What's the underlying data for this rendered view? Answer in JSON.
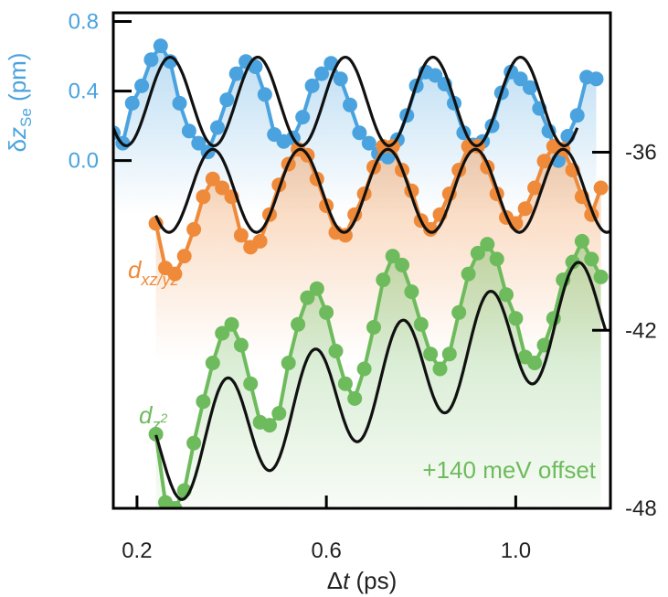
{
  "chart_data": {
    "type": "scatter",
    "title": "",
    "xlabel_delta": "Δ",
    "xlabel_t": "t",
    "xlabel_unit": " (ps)",
    "xlim": [
      0.15,
      1.2
    ],
    "x_ticks": [
      "0.2",
      "0.6",
      "1.0"
    ],
    "x_tick_values": [
      0.2,
      0.6,
      1.0
    ],
    "left_axis": {
      "label_delta": "δ",
      "label_z": "z",
      "label_sub": "Se",
      "label_unit": " (pm)",
      "ylim": [
        -2.0,
        0.85
      ],
      "ticks": [
        "0.8",
        "0.4",
        "0.0"
      ],
      "tick_values": [
        0.8,
        0.4,
        0.0
      ],
      "color": "#4aa3df"
    },
    "right_axis": {
      "ylim": [
        -48,
        -31.3
      ],
      "ticks": [
        "-36",
        "-42",
        "-48"
      ],
      "tick_values": [
        -36,
        -42,
        -48
      ]
    },
    "annotation_offset": "+140 meV offset",
    "series": [
      {
        "name_main": "δz",
        "name_sub": "Se",
        "axis": "left",
        "color": "#4aa3df",
        "x": [
          0.15,
          0.17,
          0.19,
          0.21,
          0.23,
          0.25,
          0.27,
          0.29,
          0.31,
          0.33,
          0.35,
          0.37,
          0.39,
          0.41,
          0.43,
          0.45,
          0.47,
          0.49,
          0.51,
          0.53,
          0.55,
          0.57,
          0.59,
          0.61,
          0.63,
          0.65,
          0.67,
          0.69,
          0.71,
          0.73,
          0.75,
          0.77,
          0.79,
          0.81,
          0.83,
          0.85,
          0.87,
          0.89,
          0.91,
          0.93,
          0.95,
          0.97,
          0.99,
          1.01,
          1.03,
          1.05,
          1.07,
          1.09,
          1.11,
          1.13,
          1.15,
          1.17
        ],
        "y": [
          0.16,
          0.1,
          0.33,
          0.43,
          0.58,
          0.66,
          0.57,
          0.33,
          0.17,
          0.1,
          0.05,
          0.19,
          0.35,
          0.5,
          0.57,
          0.54,
          0.38,
          0.15,
          0.11,
          0.13,
          0.25,
          0.43,
          0.5,
          0.56,
          0.47,
          0.32,
          0.16,
          0.1,
          0.04,
          0.02,
          0.12,
          0.26,
          0.43,
          0.51,
          0.49,
          0.44,
          0.33,
          0.16,
          0.09,
          0.11,
          0.2,
          0.39,
          0.51,
          0.47,
          0.42,
          0.3,
          0.17,
          0.0,
          0.14,
          0.26,
          0.48,
          0.47
        ],
        "fit": {
          "amplitude": 0.255,
          "period_ps": 0.185,
          "phase_peak_ps": 0.27,
          "offset": 0.34,
          "x_range": [
            0.15,
            1.13
          ]
        }
      },
      {
        "name_main": "d",
        "name_sub": "xz/yz",
        "axis": "right",
        "color": "#ef8a3a",
        "x": [
          0.24,
          0.26,
          0.28,
          0.3,
          0.32,
          0.34,
          0.36,
          0.38,
          0.4,
          0.42,
          0.44,
          0.46,
          0.48,
          0.5,
          0.52,
          0.54,
          0.56,
          0.58,
          0.6,
          0.62,
          0.64,
          0.66,
          0.68,
          0.7,
          0.72,
          0.74,
          0.76,
          0.78,
          0.8,
          0.82,
          0.84,
          0.86,
          0.88,
          0.9,
          0.92,
          0.94,
          0.96,
          0.98,
          1.0,
          1.02,
          1.04,
          1.06,
          1.08,
          1.1,
          1.12,
          1.14,
          1.16,
          1.18
        ],
        "y": [
          -38.4,
          -39.9,
          -40.1,
          -39.5,
          -38.6,
          -37.5,
          -36.9,
          -37.2,
          -37.5,
          -38.8,
          -39.2,
          -39.0,
          -38.1,
          -37.1,
          -36.4,
          -35.9,
          -36.1,
          -36.9,
          -37.8,
          -38.7,
          -38.8,
          -38.1,
          -37.4,
          -36.5,
          -35.8,
          -35.8,
          -36.6,
          -37.3,
          -38.3,
          -38.6,
          -38.1,
          -37.4,
          -36.6,
          -35.8,
          -35.8,
          -36.5,
          -37.4,
          -38.2,
          -38.4,
          -37.9,
          -37.2,
          -36.3,
          -35.8,
          -35.9,
          -36.6,
          -37.5,
          -38.1,
          -37.2
        ],
        "fit": {
          "amplitude": 1.4,
          "period_ps": 0.185,
          "phase_peak_ps": 0.36,
          "offset": -37.3,
          "x_range": [
            0.24,
            1.2
          ]
        }
      },
      {
        "name_main": "d",
        "name_sub": "z",
        "name_sup": "2",
        "axis": "right",
        "color": "#6dbb5c",
        "x": [
          0.24,
          0.26,
          0.28,
          0.3,
          0.32,
          0.34,
          0.36,
          0.38,
          0.4,
          0.42,
          0.44,
          0.46,
          0.48,
          0.5,
          0.52,
          0.54,
          0.56,
          0.58,
          0.6,
          0.62,
          0.64,
          0.66,
          0.68,
          0.7,
          0.72,
          0.74,
          0.76,
          0.78,
          0.8,
          0.82,
          0.84,
          0.86,
          0.88,
          0.9,
          0.92,
          0.94,
          0.96,
          0.98,
          1.0,
          1.02,
          1.04,
          1.06,
          1.08,
          1.1,
          1.12,
          1.14,
          1.16,
          1.18
        ],
        "y": [
          -45.5,
          -47.8,
          -48.0,
          -47.4,
          -45.8,
          -44.4,
          -43.1,
          -42.1,
          -41.8,
          -42.5,
          -43.8,
          -45.1,
          -45.2,
          -44.8,
          -43.1,
          -41.8,
          -40.9,
          -40.6,
          -41.4,
          -42.7,
          -43.8,
          -44.3,
          -43.3,
          -41.9,
          -40.3,
          -39.5,
          -39.8,
          -40.7,
          -41.8,
          -42.8,
          -43.3,
          -42.8,
          -41.4,
          -40.1,
          -39.4,
          -39.1,
          -39.6,
          -40.8,
          -41.6,
          -42.9,
          -43.1,
          -42.5,
          -41.6,
          -40.3,
          -39.7,
          -39.0,
          -39.6,
          -40.2
        ],
        "fit": {
          "amplitude": 1.8,
          "period_ps": 0.185,
          "phase_peak_ps": 0.39,
          "base_start": -46.2,
          "base_end": -41.2,
          "x_range": [
            0.24,
            1.19
          ]
        }
      }
    ]
  }
}
